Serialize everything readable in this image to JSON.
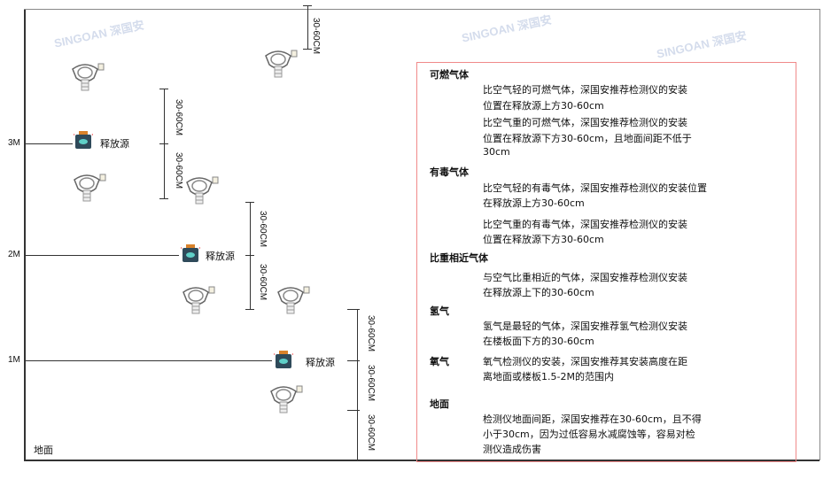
{
  "levels": [
    "3M",
    "2M",
    "1M"
  ],
  "ground_label": "地面",
  "source_label": "释放源",
  "dimension_label": "30-60CM",
  "watermark": "SINGOAN 深国安",
  "notes": [
    {
      "heading": "可燃气体",
      "paras": [
        [
          "比空气轻的可燃气体，深国安推荐检测仪的安装",
          "位置在释放源上方30-60cm"
        ],
        [
          "比空气重的可燃气体，深国安推荐检测仪的安装",
          "位置在释放源下方30-60cm，且地面间距不低于",
          "30cm"
        ]
      ]
    },
    {
      "heading": "有毒气体",
      "paras": [
        [
          "比空气轻的有毒气体，深国安推荐检测仪的安装位置",
          "在释放源上方30-60cm"
        ],
        [
          "比空气重的有毒气体，深国安推荐检测仪的安装",
          "位置在释放源下方30-60cm"
        ]
      ]
    },
    {
      "heading": "比重相近气体",
      "paras": [
        [
          "与空气比重相近的气体，深国安推荐检测仪安装",
          "在释放源上下的30-60cm"
        ]
      ]
    },
    {
      "heading": "氢气",
      "paras": [
        [
          "氢气是最轻的气体，深国安推荐氢气检测仪安装",
          "在楼板面下方的30-60cm"
        ]
      ]
    },
    {
      "heading": "氧气",
      "paras": [
        [
          "氧气检测仪的安装，深国安推荐其安装高度在距",
          "离地面或楼板1.5-2M的范围内"
        ]
      ]
    },
    {
      "heading": "地面",
      "paras": [
        [
          "检测仪地面间距，深国安推荐在30-60cm，且不得",
          "小于30cm，因为过低容易水减腐蚀等，容易对检",
          "测仪造成伤害"
        ]
      ]
    }
  ],
  "colors": {
    "border": "#f08a8a",
    "source_body": "#2f4a5a",
    "source_cap": "#d9822b",
    "source_icon": "#5fd0c8"
  }
}
